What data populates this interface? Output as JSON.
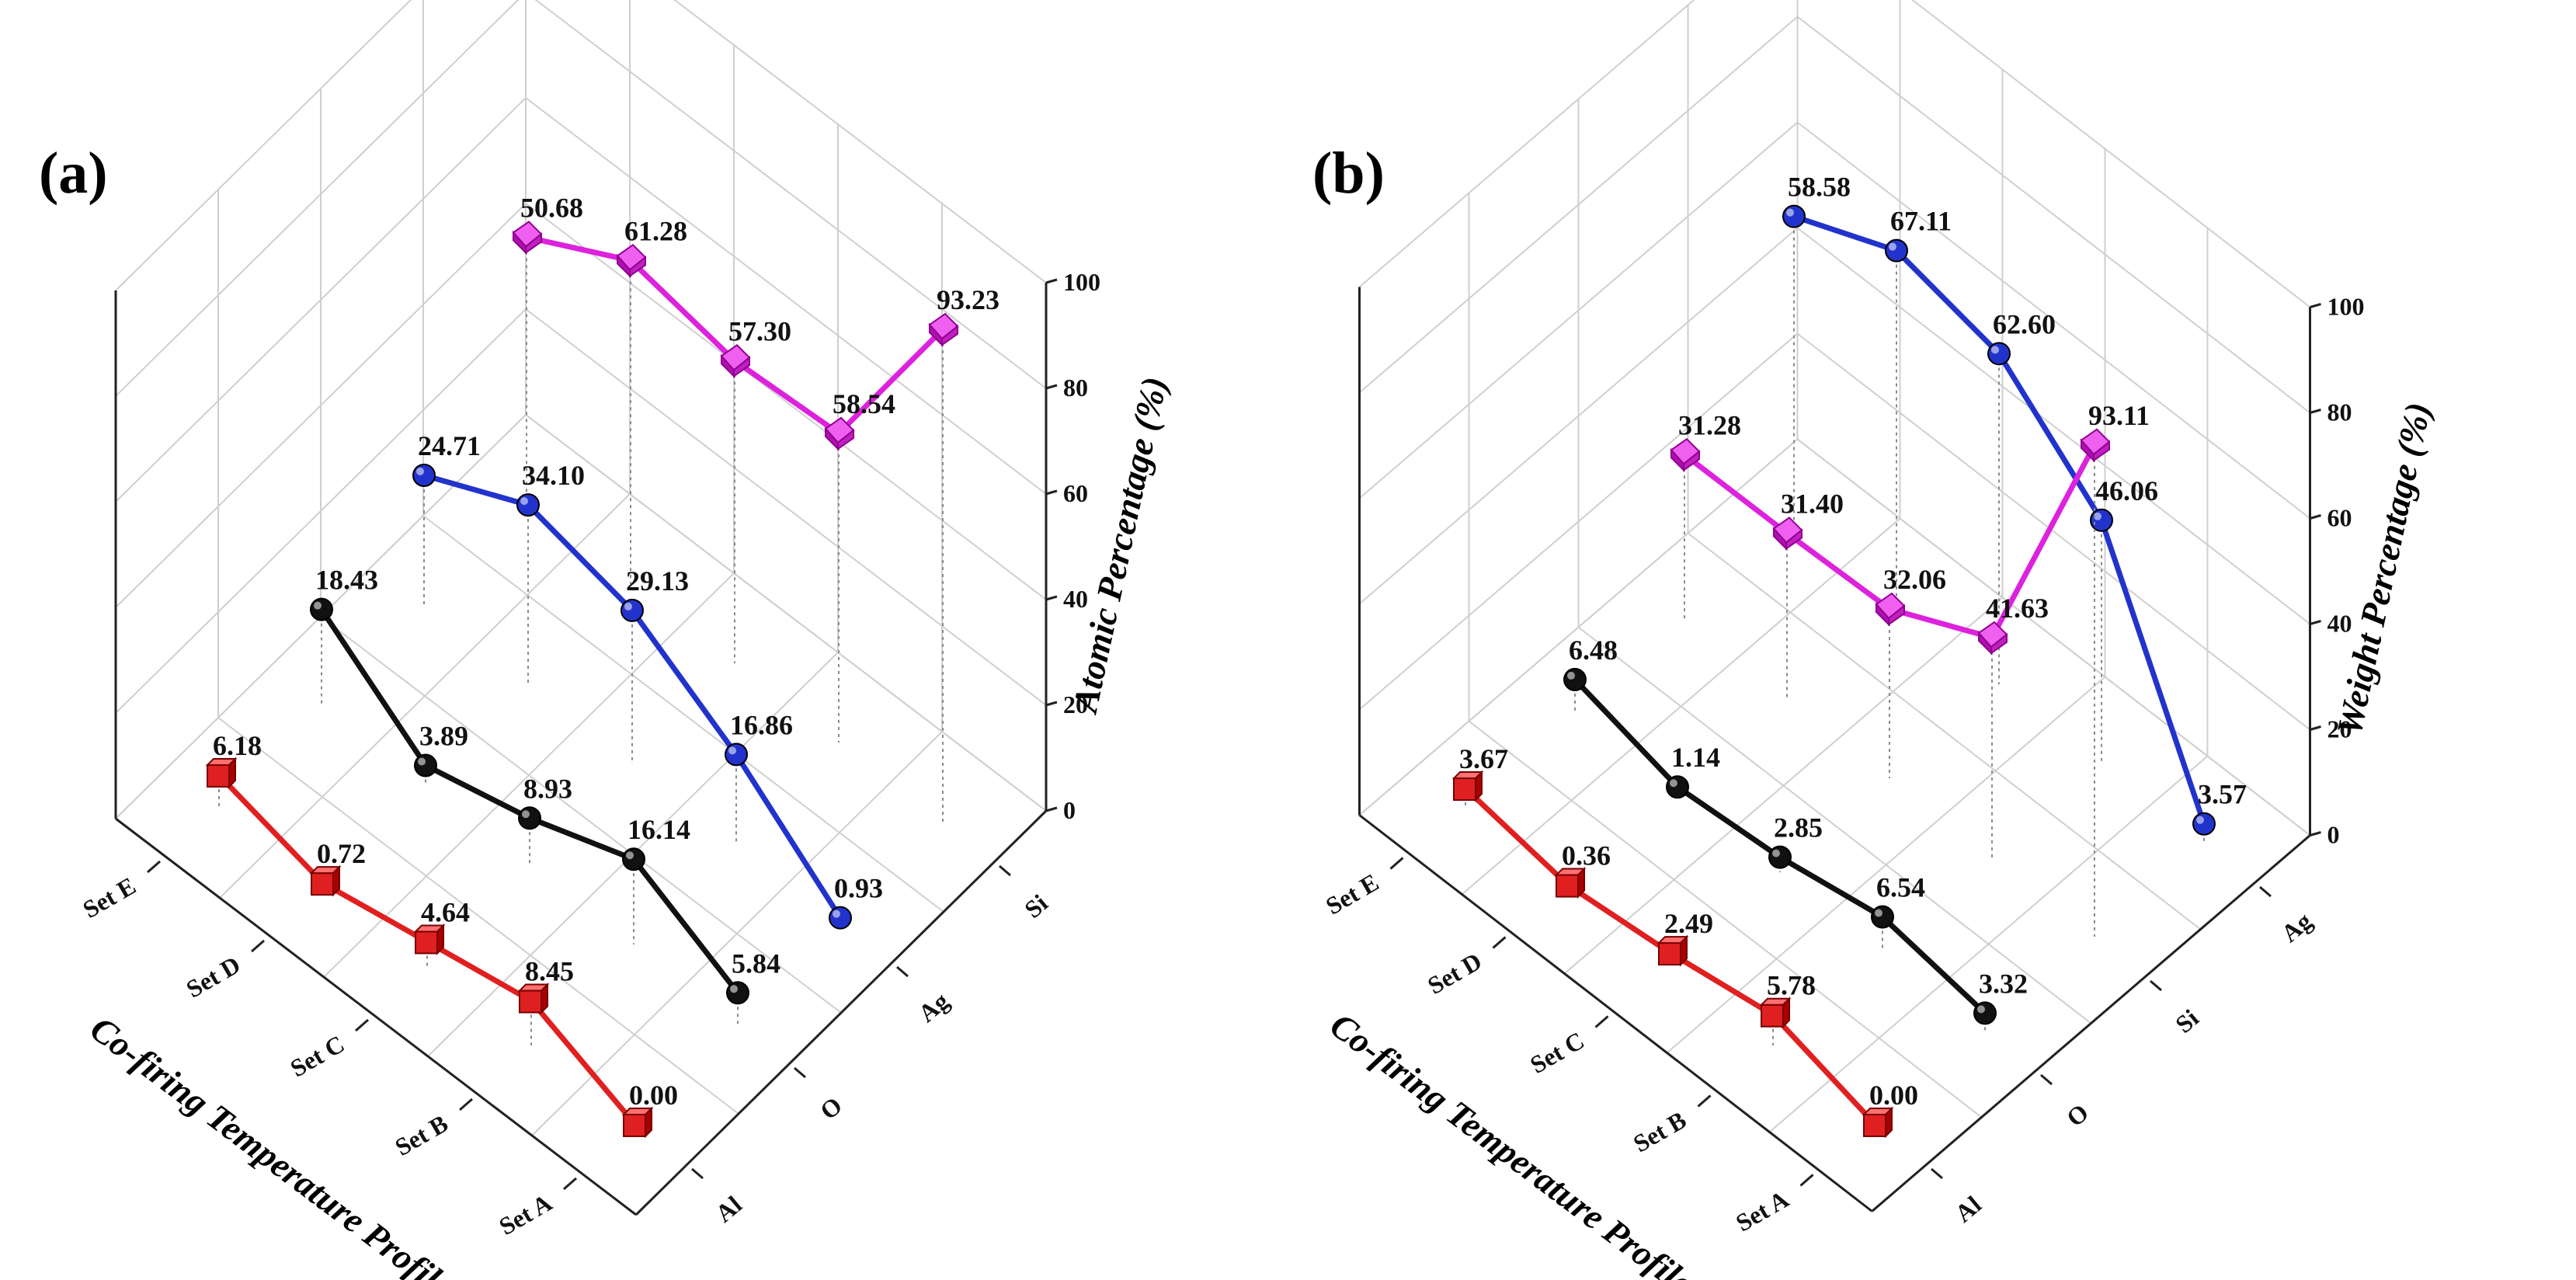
{
  "chart_data": [
    {
      "type": "line",
      "panel": "(a)",
      "title": "",
      "xlabel": "Co-firing Temperature Profile Set",
      "ylabel": "",
      "zlabel": "Atomic Percentage (%)",
      "categories": [
        "Set A",
        "Set B",
        "Set C",
        "Set D",
        "Set E"
      ],
      "elements": [
        "Al",
        "O",
        "Ag",
        "Si"
      ],
      "zlim": [
        0,
        100
      ],
      "zticks": [
        0,
        20,
        40,
        60,
        80,
        100
      ],
      "series": [
        {
          "name": "Al",
          "color": "#e02020",
          "marker": "cube",
          "values": [
            0.0,
            8.45,
            4.64,
            0.72,
            6.18
          ],
          "labels": [
            "0.00",
            "8.45",
            "4.64",
            "0.72",
            "6.18"
          ]
        },
        {
          "name": "O",
          "color": "#111111",
          "marker": "sphere",
          "values": [
            5.84,
            16.14,
            8.93,
            3.89,
            18.43
          ],
          "labels": [
            "5.84",
            "16.14",
            "8.93",
            "3.89",
            "18.43"
          ]
        },
        {
          "name": "Ag",
          "color": "#2233cc",
          "marker": "sphere",
          "values": [
            0.93,
            16.86,
            29.13,
            34.1,
            24.71
          ],
          "labels": [
            "0.93",
            "16.86",
            "29.13",
            "34.10",
            "24.71"
          ]
        },
        {
          "name": "Si",
          "color": "#dd22dd",
          "marker": "diamond",
          "values": [
            93.23,
            58.54,
            57.3,
            61.28,
            50.68
          ],
          "labels": [
            "93.23",
            "58.54",
            "57.30",
            "61.28",
            "50.68"
          ]
        }
      ]
    },
    {
      "type": "line",
      "panel": "(b)",
      "title": "",
      "xlabel": "Co-firing Temperature Profile Set",
      "ylabel": "",
      "zlabel": "Weight Percentage (%)",
      "categories": [
        "Set A",
        "Set B",
        "Set C",
        "Set D",
        "Set E"
      ],
      "elements": [
        "Al",
        "O",
        "Si",
        "Ag"
      ],
      "zlim": [
        0,
        100
      ],
      "zticks": [
        0,
        20,
        40,
        60,
        80,
        100
      ],
      "series": [
        {
          "name": "Al",
          "color": "#e02020",
          "marker": "cube",
          "values": [
            0.0,
            5.78,
            2.49,
            0.36,
            3.67
          ],
          "labels": [
            "0.00",
            "5.78",
            "2.49",
            "0.36",
            "3.67"
          ]
        },
        {
          "name": "O",
          "color": "#111111",
          "marker": "sphere",
          "values": [
            3.32,
            6.54,
            2.85,
            1.14,
            6.48
          ],
          "labels": [
            "3.32",
            "6.54",
            "2.85",
            "1.14",
            "6.48"
          ]
        },
        {
          "name": "Si",
          "color": "#dd22dd",
          "marker": "diamond",
          "values": [
            93.11,
            41.63,
            32.06,
            31.4,
            31.28
          ],
          "labels": [
            "93.11",
            "41.63",
            "32.06",
            "31.40",
            "31.28"
          ]
        },
        {
          "name": "Ag",
          "color": "#2233cc",
          "marker": "sphere",
          "values": [
            3.57,
            46.06,
            62.6,
            67.11,
            58.58
          ],
          "labels": [
            "3.57",
            "46.06",
            "62.60",
            "67.11",
            "58.58"
          ]
        }
      ]
    }
  ]
}
